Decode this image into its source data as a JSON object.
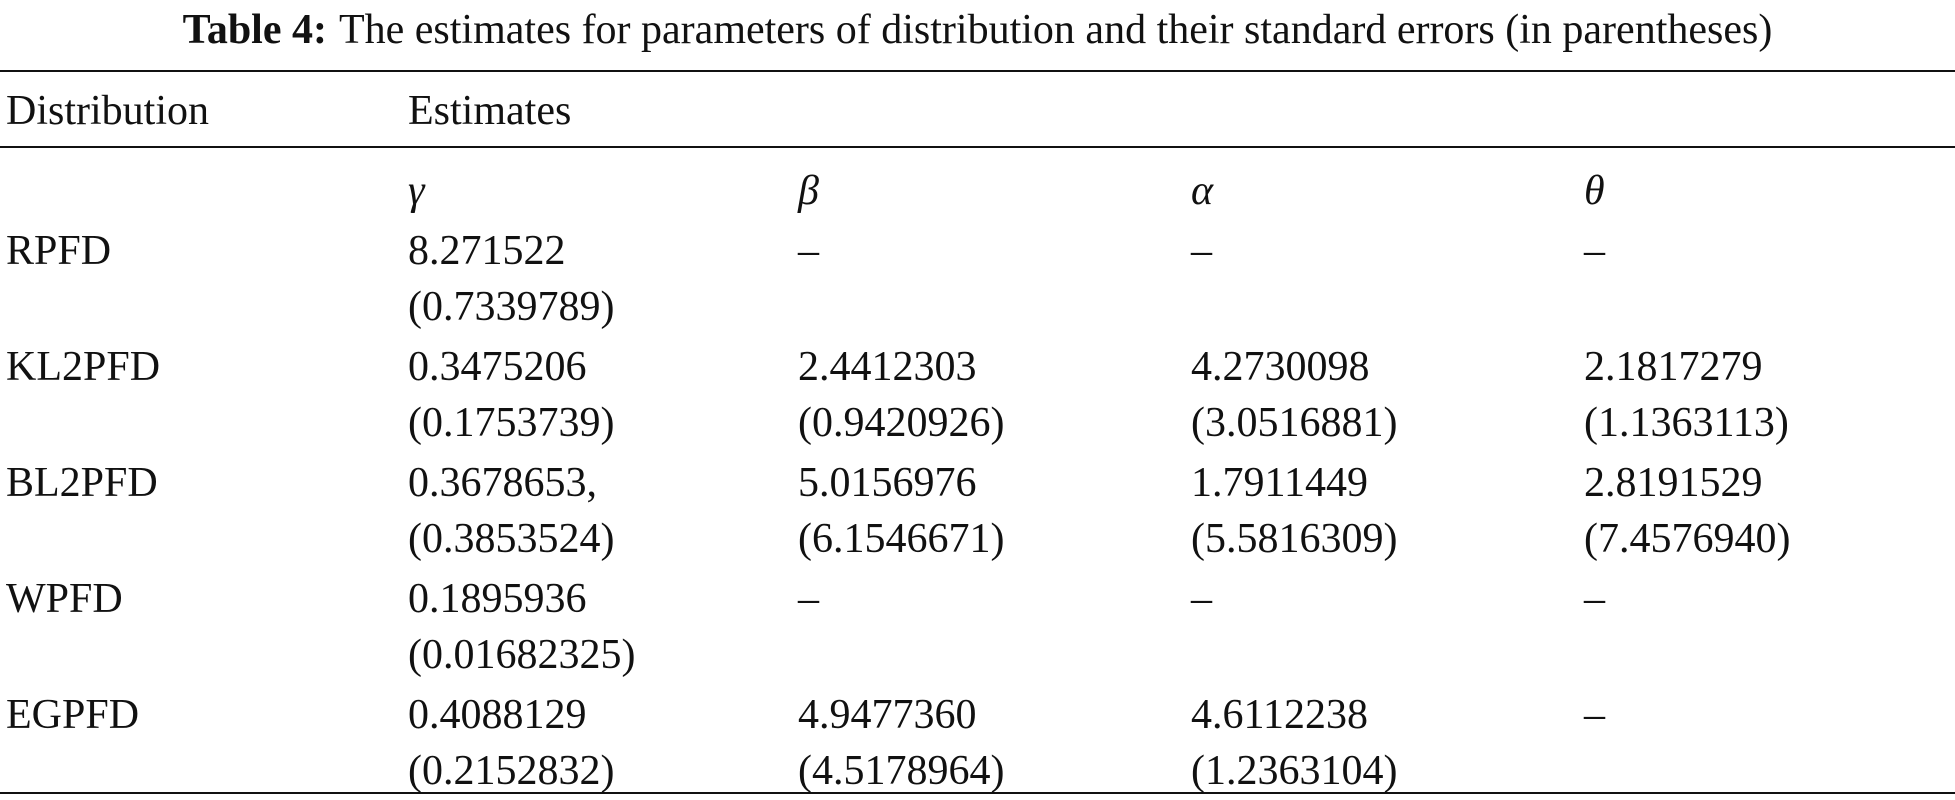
{
  "caption": {
    "label": "Table 4:",
    "text": "The estimates for parameters of distribution and their standard errors (in parentheses)"
  },
  "table": {
    "header": [
      "Distribution",
      "Estimates"
    ],
    "params": [
      "γ",
      "β",
      "α",
      "θ"
    ],
    "rows": [
      {
        "name": "RPFD",
        "cells": [
          [
            "8.271522",
            "(0.7339789)"
          ],
          [
            "–"
          ],
          [
            "–"
          ],
          [
            "–"
          ]
        ]
      },
      {
        "name": "KL2PFD",
        "cells": [
          [
            "0.3475206",
            "(0.1753739)"
          ],
          [
            "2.4412303",
            "(0.9420926)"
          ],
          [
            "4.2730098",
            "(3.0516881)"
          ],
          [
            "2.1817279",
            "(1.1363113)"
          ]
        ]
      },
      {
        "name": "BL2PFD",
        "cells": [
          [
            "0.3678653,",
            "(0.3853524)"
          ],
          [
            "5.0156976",
            "(6.1546671)"
          ],
          [
            "1.7911449",
            "(5.5816309)"
          ],
          [
            "2.8191529",
            "(7.4576940)"
          ]
        ]
      },
      {
        "name": "WPFD",
        "cells": [
          [
            "0.1895936",
            "(0.01682325)"
          ],
          [
            "–"
          ],
          [
            "–"
          ],
          [
            "–"
          ]
        ]
      },
      {
        "name": "EGPFD",
        "cells": [
          [
            "0.4088129",
            "(0.2152832)"
          ],
          [
            "4.9477360",
            "(4.5178964)"
          ],
          [
            "4.6112238",
            "(1.2363104)"
          ],
          [
            "–"
          ]
        ]
      }
    ]
  }
}
